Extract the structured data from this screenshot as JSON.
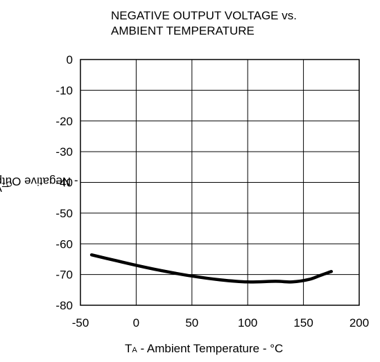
{
  "chart_data": {
    "type": "line",
    "title_line1": "NEGATIVE OUTPUT VOLTAGE vs.",
    "title_line2": "AMBIENT TEMPERATURE",
    "xlabel_prefix": "T",
    "xlabel_sub": "A",
    "xlabel_rest": " - Ambient Temperature - °C",
    "ylabel_prefix": "–V",
    "ylabel_sub": "O",
    "ylabel_rest": " - Negative Output Voltage - V",
    "xlim": [
      -50,
      200
    ],
    "ylim": [
      -80,
      0
    ],
    "xticks": [
      -50,
      0,
      50,
      100,
      150,
      200
    ],
    "yticks": [
      0,
      -10,
      -20,
      -30,
      -40,
      -50,
      -60,
      -70,
      -80
    ],
    "xtick_labels": [
      "-50",
      "0",
      "50",
      "100",
      "150",
      "200"
    ],
    "ytick_labels": [
      "0",
      "-10",
      "-20",
      "-30",
      "-40",
      "-50",
      "-60",
      "-70",
      "-80"
    ],
    "grid": true,
    "line_color": "#000000",
    "series": [
      {
        "x": [
          -40,
          -20,
          0,
          25,
          50,
          75,
          100,
          125,
          140,
          155,
          165,
          175
        ],
        "y": [
          -63.6,
          -65.3,
          -67.0,
          -68.9,
          -70.5,
          -71.7,
          -72.4,
          -72.2,
          -72.4,
          -71.6,
          -70.3,
          -69.0
        ]
      }
    ]
  }
}
